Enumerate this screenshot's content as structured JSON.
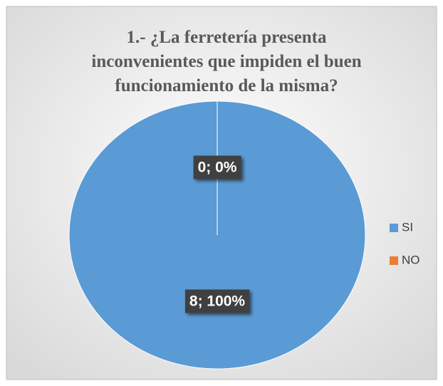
{
  "chart_data": {
    "type": "pie",
    "title": "1.- ¿La ferretería presenta inconvenientes que impiden el buen funcionamiento de la misma?",
    "title_lines": [
      "1.- ¿La ferretería presenta",
      "inconvenientes que impiden el buen",
      "funcionamiento de la misma?"
    ],
    "categories": [
      "SI",
      "NO"
    ],
    "values": [
      8,
      0
    ],
    "value_labels": [
      "8; 100%",
      "0; 0%"
    ],
    "colors": [
      "#5b9bd5",
      "#ed7d31"
    ],
    "legend": "right"
  }
}
